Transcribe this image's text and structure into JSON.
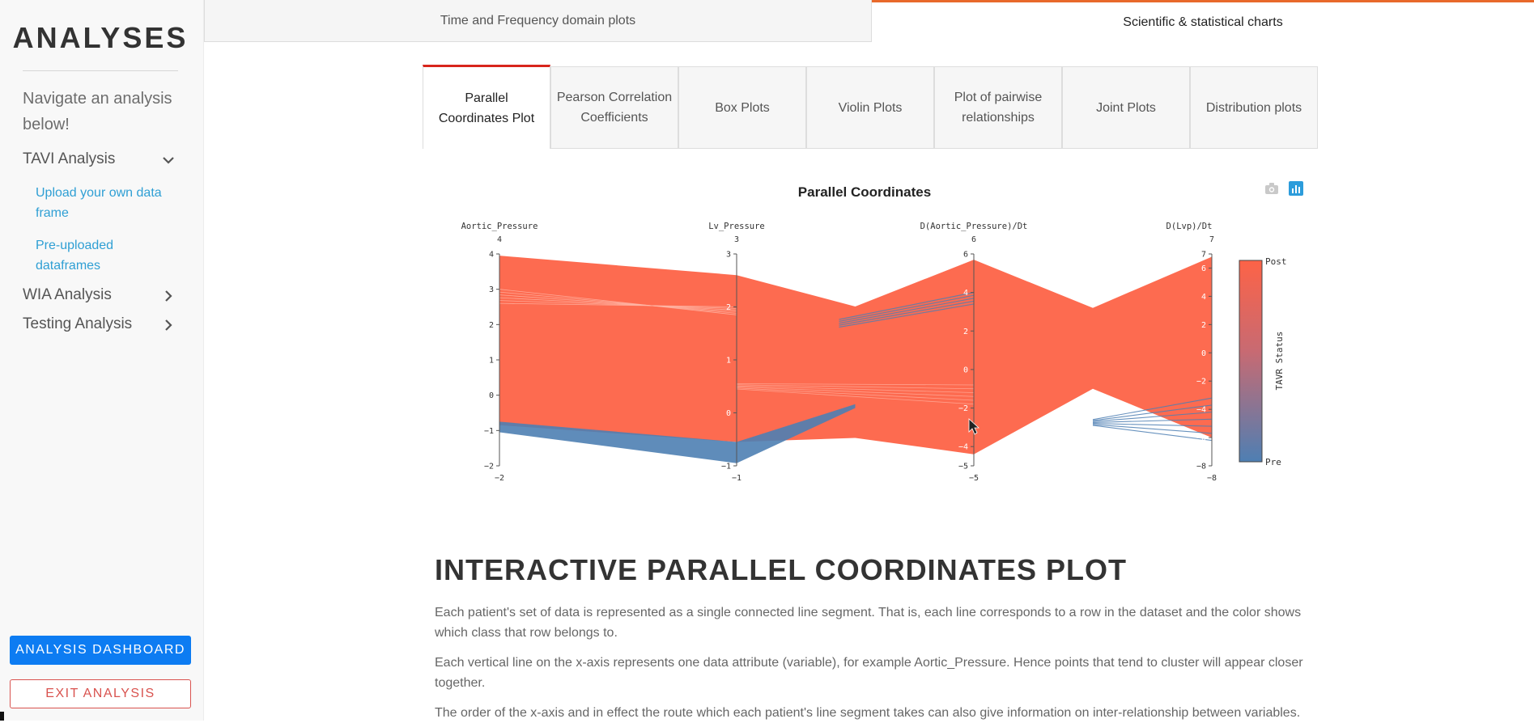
{
  "sidebar": {
    "brand": "ANALYSES",
    "hint": "Navigate an analysis below!",
    "items": [
      {
        "label": "TAVI Analysis",
        "expanded": true,
        "children": [
          {
            "label": "Upload your own data frame"
          },
          {
            "label": "Pre-uploaded dataframes"
          }
        ]
      },
      {
        "label": "WIA Analysis",
        "expanded": false
      },
      {
        "label": "Testing Analysis",
        "expanded": false
      }
    ],
    "dashboard_label": "ANALYSIS DASHBOARD",
    "exit_label": "EXIT ANALYSIS"
  },
  "top_tabs": [
    {
      "label": "Time and Frequency domain plots",
      "active": false
    },
    {
      "label": "Scientific & statistical charts",
      "active": true
    }
  ],
  "sub_tabs": [
    {
      "label": "Parallel Coordinates Plot",
      "active": true
    },
    {
      "label": "Pearson Correlation Coefficients",
      "active": false
    },
    {
      "label": "Box Plots",
      "active": false
    },
    {
      "label": "Violin Plots",
      "active": false
    },
    {
      "label": "Plot of pairwise relationships",
      "active": false
    },
    {
      "label": "Joint Plots",
      "active": false
    },
    {
      "label": "Distribution plots",
      "active": false
    }
  ],
  "colors": {
    "accent_top": "#e8692b",
    "accent_sub": "#d8251c",
    "primary": "#0d7cf2",
    "danger": "#d9534f",
    "post": "#fd6347",
    "pre": "#4e7fb3",
    "link": "#2f9fd4"
  },
  "chart_data": {
    "type": "parcoords",
    "title": "Parallel Coordinates",
    "dimensions": [
      {
        "label": "Aortic_Pressure",
        "range": [
          -2,
          4
        ],
        "ticks": [
          -2,
          -1,
          0,
          1,
          2,
          3,
          4
        ],
        "top_label": "4",
        "bottom_label": "−2"
      },
      {
        "label": "Lv_Pressure",
        "range": [
          -1,
          3
        ],
        "ticks": [
          0,
          1,
          2
        ],
        "top_label": "3",
        "bottom_label": "−1",
        "end_ticks": [
          "3",
          "−1"
        ]
      },
      {
        "label": "D(Aortic_Pressure)/Dt",
        "range": [
          -5,
          6
        ],
        "ticks": [
          -4,
          -2,
          0,
          2,
          4
        ],
        "top_label": "6",
        "bottom_label": "−5",
        "end_ticks": [
          "6",
          "−5"
        ]
      },
      {
        "label": "D(Lvp)/Dt",
        "range": [
          -8,
          7
        ],
        "ticks": [
          -6,
          -4,
          -2,
          0,
          2,
          4,
          6
        ],
        "top_label": "7",
        "bottom_label": "−8",
        "end_ticks": [
          "7",
          "−8"
        ]
      }
    ],
    "post_band": {
      "top": [
        3.95,
        2.6,
        5.7,
        6.8
      ],
      "bottom": [
        -0.85,
        -0.55,
        -4.4,
        -6.0
      ]
    },
    "pre_band": {
      "top": [
        -0.75,
        -0.55,
        4.0,
        -3.2
      ],
      "bottom": [
        -1.05,
        -0.95,
        3.3,
        -6.5
      ]
    },
    "middle_mins": [
      2.15,
      -3.0
    ],
    "colorbar": {
      "title": "TAVR Status",
      "top_label": "Post",
      "bottom_label": "Pre"
    }
  },
  "article": {
    "title": "INTERACTIVE PARALLEL COORDINATES PLOT",
    "paragraphs": [
      "Each patient's set of data is represented as a single connected line segment. That is, each line corresponds to a row in the dataset and the color shows which class that row belongs to.",
      "Each vertical line on the x-axis represents one data attribute (variable), for example Aortic_Pressure. Hence points that tend to cluster will appear closer together.",
      "The order of the x-axis and in effect the route which each patient's line segment takes can also give information on inter-relationship between variables."
    ]
  }
}
